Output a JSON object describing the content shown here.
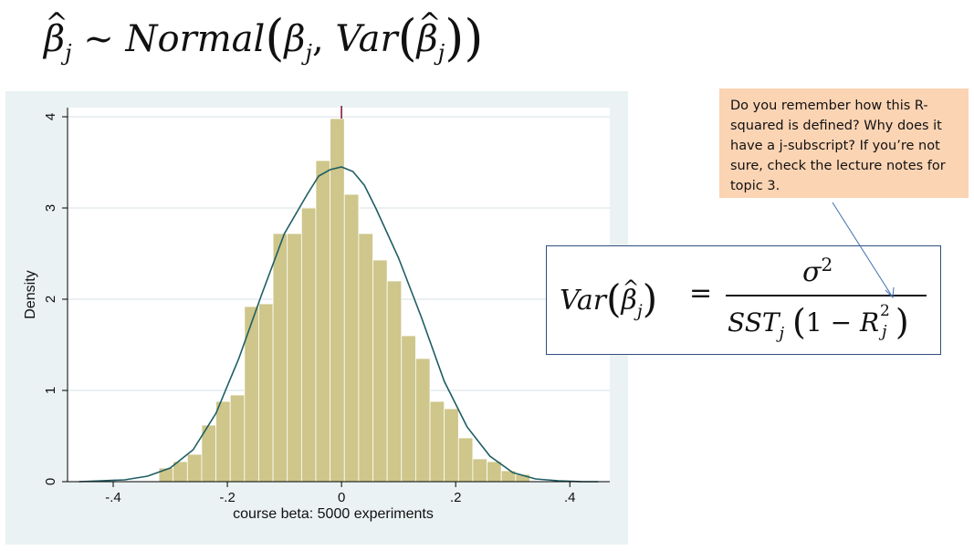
{
  "formula_top": {
    "beta": "β",
    "hat": "^",
    "sub_j": "j",
    "tilde": "~",
    "normal": "Normal",
    "open_paren": "(",
    "close_paren": ")",
    "comma": ",",
    "var": "Var"
  },
  "callout": {
    "text": "Do you remember how this R-squared is defined? Why does it have a j-subscript? If you’re not sure, check the lecture notes for topic 3."
  },
  "var_formula": {
    "var": "Var",
    "beta": "β",
    "hat": "^",
    "sub_j": "j",
    "open_paren": "(",
    "close_paren": ")",
    "equals": "=",
    "sigma": "σ",
    "sup_2": "2",
    "sst": "SST",
    "one_minus": "1 −",
    "r": "R"
  },
  "chart_data": {
    "type": "bar",
    "xlabel": "course beta: 5000 experiments",
    "ylabel": "Density",
    "xlim": [
      -0.48,
      0.47
    ],
    "ylim": [
      0,
      4.1
    ],
    "xticks": [
      -0.4,
      -0.2,
      0,
      0.2,
      0.4
    ],
    "xtick_labels": [
      "-.4",
      "-.2",
      "0",
      ".2",
      ".4"
    ],
    "yticks": [
      0,
      1,
      2,
      3,
      4
    ],
    "ytick_labels": [
      "0",
      "1",
      "2",
      "3",
      "4"
    ],
    "grid": true,
    "reference_line_x": 0,
    "bin_edges": [
      -0.32,
      -0.295,
      -0.27,
      -0.245,
      -0.22,
      -0.195,
      -0.17,
      -0.145,
      -0.12,
      -0.095,
      -0.07,
      -0.045,
      -0.02,
      0.005,
      0.03,
      0.055,
      0.08,
      0.105,
      0.13,
      0.155,
      0.18,
      0.205,
      0.23,
      0.255,
      0.28,
      0.305,
      0.33
    ],
    "values": [
      0.15,
      0.22,
      0.3,
      0.62,
      0.88,
      0.95,
      1.92,
      1.95,
      2.72,
      2.72,
      3.0,
      3.52,
      3.98,
      3.15,
      2.72,
      2.43,
      2.2,
      1.6,
      1.35,
      0.88,
      0.8,
      0.48,
      0.25,
      0.22,
      0.12,
      0.08
    ],
    "density_curve": {
      "x": [
        -0.46,
        -0.42,
        -0.38,
        -0.34,
        -0.3,
        -0.26,
        -0.22,
        -0.18,
        -0.14,
        -0.1,
        -0.06,
        -0.04,
        -0.02,
        0.0,
        0.02,
        0.04,
        0.06,
        0.1,
        0.14,
        0.18,
        0.22,
        0.26,
        0.3,
        0.34,
        0.38,
        0.42,
        0.45
      ],
      "y": [
        0.0,
        0.01,
        0.02,
        0.06,
        0.15,
        0.35,
        0.75,
        1.35,
        2.05,
        2.72,
        3.15,
        3.35,
        3.42,
        3.45,
        3.4,
        3.25,
        3.0,
        2.45,
        1.8,
        1.1,
        0.6,
        0.28,
        0.1,
        0.03,
        0.01,
        0.0,
        0.0
      ]
    },
    "bar_color": "#cec68a",
    "curve_color": "#1f5e63",
    "ref_line_color": "#8b1a3a"
  }
}
